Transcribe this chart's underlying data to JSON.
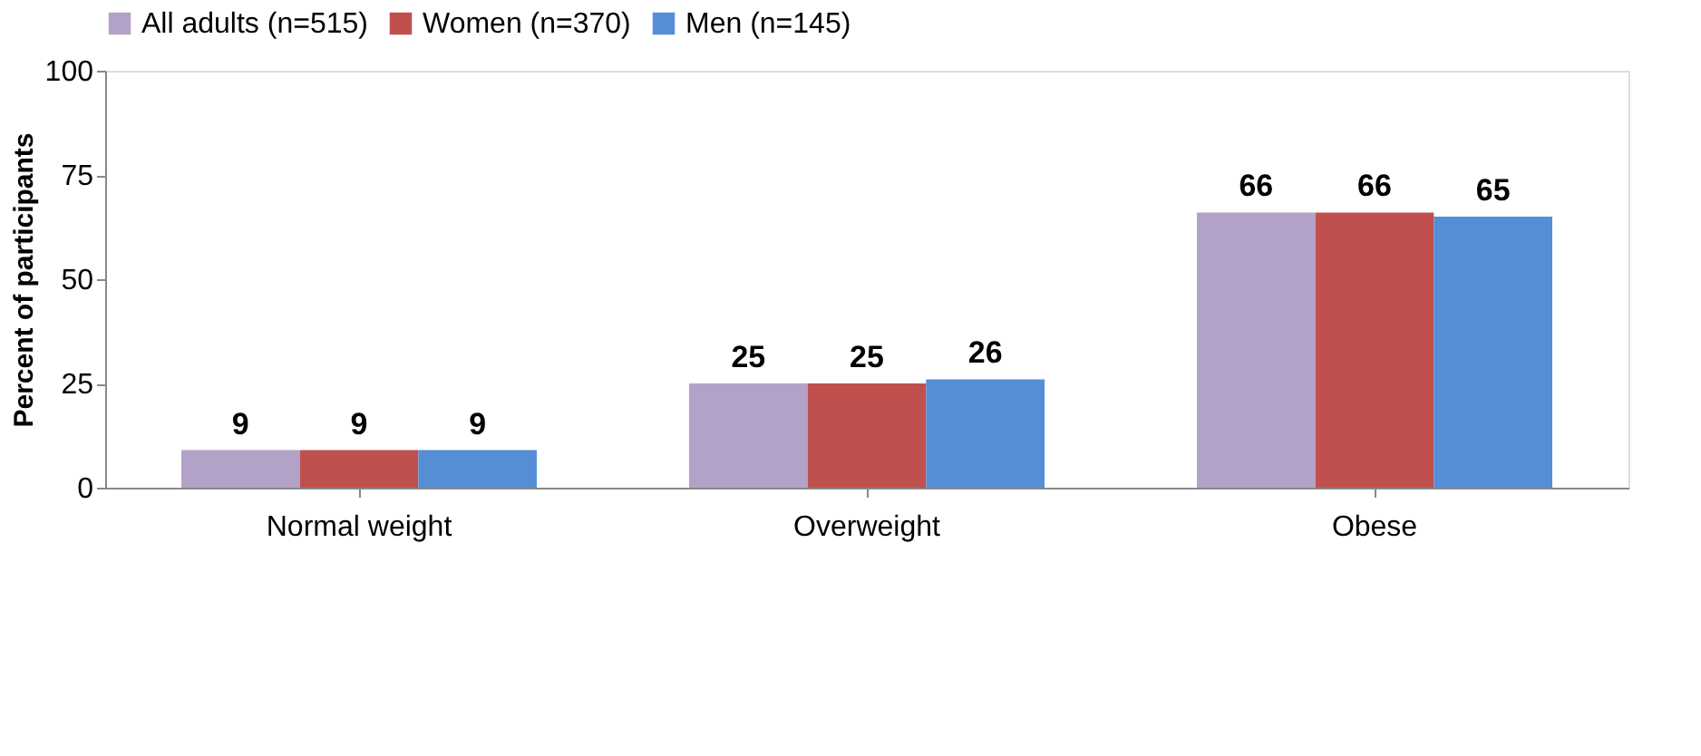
{
  "chart_data": {
    "type": "bar",
    "ylabel": "Percent of participants",
    "categories": [
      "Normal weight",
      "Overweight",
      "Obese"
    ],
    "series": [
      {
        "name": "All adults (n=515)",
        "color": "#b3a2c7",
        "values": [
          9,
          25,
          66
        ]
      },
      {
        "name": "Women (n=370)",
        "color": "#c0504d",
        "values": [
          9,
          25,
          66
        ]
      },
      {
        "name": "Men (n=145)",
        "color": "#558ed5",
        "values": [
          9,
          26,
          65
        ]
      }
    ],
    "ylim": [
      0,
      100
    ],
    "yticks": [
      0,
      25,
      50,
      75,
      100
    ],
    "data_labels": true,
    "legend": "top",
    "grid": false
  }
}
